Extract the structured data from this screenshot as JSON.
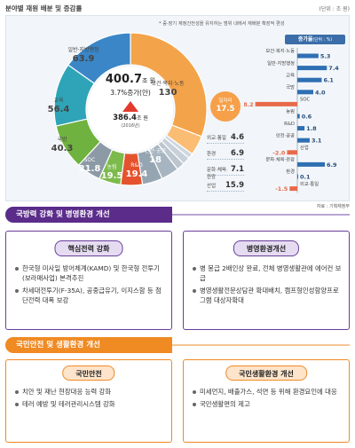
{
  "header": {
    "title": "분야별 재원 배분 및 증감률",
    "unit": "(단위 : 조 원)"
  },
  "note": "* 중·장기 재정건전성을 유지하는 범위 내에서 재배분 확장적 편성",
  "center": {
    "total": "400.7",
    "total_unit": "조 원",
    "growth": "3.7%증가",
    "growth_suffix": "(안)",
    "prev": "386.4",
    "prev_unit": "조 원",
    "prev_year": "(2016년)"
  },
  "colors": {
    "welfare": "#f3a34a",
    "general": "#3a86c6",
    "education": "#2fa4b8",
    "defense": "#6fb23f",
    "soc": "#8c9aa6",
    "agri": "#7dba4c",
    "rnd": "#e4532d",
    "industry": "#a7b5c1",
    "culture": "#c8d1d9",
    "accent_up": "#e23b2e",
    "bar_pos": "#2f6fb3",
    "bar_neg": "#e8694a"
  },
  "chart_data": [
    {
      "type": "pie",
      "unit": "조 원",
      "slices": [
        {
          "label": "보건·복지·노동",
          "value": 130,
          "color": "#f3a34a"
        },
        {
          "label": "일자리",
          "value": 17.5,
          "color": "#fbbd73"
        },
        {
          "label": "외교·통일",
          "value": 4.6,
          "color": "#d0d8df"
        },
        {
          "label": "환경",
          "value": 6.9,
          "color": "#c8d1d9"
        },
        {
          "label": "문화·체육·관광",
          "value": 7.1,
          "color": "#bcc6cf"
        },
        {
          "label": "산업",
          "value": 15.9,
          "color": "#a7b5c1"
        },
        {
          "label": "안전·공공",
          "value": 18,
          "color": "#96a5b2"
        },
        {
          "label": "R&D",
          "value": 19.4,
          "color": "#e4532d"
        },
        {
          "label": "농림",
          "value": 19.5,
          "color": "#7dba4c"
        },
        {
          "label": "SOC",
          "value": 21.8,
          "color": "#8c9aa6"
        },
        {
          "label": "국방",
          "value": 40.3,
          "color": "#6fb23f"
        },
        {
          "label": "교육",
          "value": 56.4,
          "color": "#2fa4b8"
        },
        {
          "label": "일반·지방행정",
          "value": 63.9,
          "color": "#3a86c6"
        }
      ]
    },
    {
      "type": "bar",
      "title": "증가율",
      "unit": "(단위 : %)",
      "categories": [
        "보건·복지·노동",
        "일반·지방행정",
        "교육",
        "국방",
        "SOC",
        "농림",
        "R&D",
        "안전·공공",
        "산업",
        "문화·체육·관광",
        "환경",
        "외교·통일"
      ],
      "values": [
        5.3,
        7.4,
        6.1,
        4.0,
        -8.2,
        0.6,
        1.8,
        3.1,
        -2.0,
        6.9,
        0.1,
        -1.5
      ],
      "value_labels": [
        "5.3",
        "7.4",
        "6.1",
        "4.0",
        "-8.2",
        "0.6",
        "1.8",
        "3.1",
        "-2.0",
        "6.9",
        "0.1",
        "-1.5"
      ],
      "xlim": [
        -9,
        8
      ]
    }
  ],
  "source": "자료 : 기획재정부",
  "section1": {
    "title": "국방력 강화 및 병영환경 개선",
    "box_left": {
      "title": "핵심전력 강화",
      "items": [
        "한국형 미사일 방어체계(KAMD) 및 한국형 전투기(보라매사업) 본격추진",
        "차세대전투기(F-35A), 공중급유기, 이지스함 등 첨단전력 대폭 보강"
      ]
    },
    "box_right": {
      "title": "병영환경개선",
      "items": [
        "병 봉급 2배인상 완료, 전체 병영생활관에 에어컨 보급",
        "병영생활전문상담관 확대배치, 캠프형인성함양프로그램 대상자확대"
      ]
    }
  },
  "section2": {
    "title": "국민안전 및 생활환경 개선",
    "box_left": {
      "title": "국민안전",
      "items": [
        "치안 및 재난 현장대응 능력 강화",
        "테러 예방 및 테러관리시스템 강화"
      ]
    },
    "box_right": {
      "title": "국민생활환경 개선",
      "items": [
        "미세먼지, 배출가스, 석면 등 위해 환경요인에 대응",
        "국민생활편의 제고"
      ]
    }
  }
}
